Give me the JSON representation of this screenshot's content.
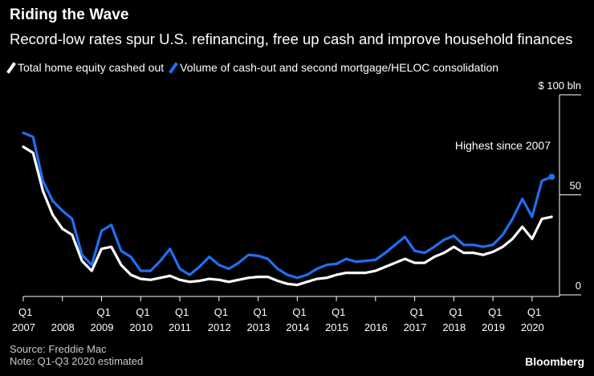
{
  "header": {
    "title": "Riding the Wave",
    "subtitle": "Record-low rates spur U.S. refinancing, free up cash and improve household finances"
  },
  "legend": [
    {
      "label": "Total home equity cashed out",
      "color": "#ffffff"
    },
    {
      "label": "Volume of cash-out and second mortgage/HELOC consolidation",
      "color": "#1f6ff2"
    }
  ],
  "footer": {
    "source": "Source: Freddie Mac",
    "note": "Note: Q1-Q3 2020 estimated",
    "brand": "Bloomberg"
  },
  "chart_data": {
    "type": "line",
    "title": "Riding the Wave",
    "ylabel": "$ bln",
    "ylim": [
      0,
      100
    ],
    "y_ticks": [
      {
        "value": 100,
        "label": "$ 100 bln"
      },
      {
        "value": 50,
        "label": "50"
      },
      {
        "value": 0,
        "label": "0"
      }
    ],
    "x_ticks": [
      {
        "quarter_index": 0,
        "q": "Q1",
        "year": "2007"
      },
      {
        "quarter_index": 4,
        "q": "",
        "year": "2008"
      },
      {
        "quarter_index": 8,
        "q": "Q1",
        "year": "2009"
      },
      {
        "quarter_index": 12,
        "q": "Q1",
        "year": "2010"
      },
      {
        "quarter_index": 16,
        "q": "Q1",
        "year": "2011"
      },
      {
        "quarter_index": 20,
        "q": "Q1",
        "year": "2012"
      },
      {
        "quarter_index": 24,
        "q": "Q1",
        "year": "2013"
      },
      {
        "quarter_index": 28,
        "q": "Q1",
        "year": "2014"
      },
      {
        "quarter_index": 32,
        "q": "Q1",
        "year": "2015"
      },
      {
        "quarter_index": 36,
        "q": "",
        "year": "2016"
      },
      {
        "quarter_index": 40,
        "q": "Q1",
        "year": "2017"
      },
      {
        "quarter_index": 44,
        "q": "Q1",
        "year": "2018"
      },
      {
        "quarter_index": 48,
        "q": "Q1",
        "year": "2019"
      },
      {
        "quarter_index": 52,
        "q": "Q1",
        "year": "2020"
      }
    ],
    "x_range": [
      0,
      54.8
    ],
    "annotation": {
      "text": "Highest since 2007",
      "series_index": 1,
      "point_index": 54
    },
    "series": [
      {
        "name": "Total home equity cashed out",
        "color": "#ffffff",
        "values": [
          74,
          71,
          52,
          40,
          33,
          30,
          17,
          12,
          23,
          24,
          15,
          10,
          8,
          7.5,
          8.5,
          9.5,
          7.5,
          6.5,
          7,
          8,
          7.5,
          6.5,
          7.5,
          8.5,
          9,
          9,
          7,
          5.5,
          5,
          6.5,
          8,
          8.5,
          10,
          11,
          11,
          11,
          12,
          14,
          16,
          18,
          16,
          16,
          19,
          21,
          24,
          21,
          21,
          20,
          21.5,
          24,
          28,
          34,
          28,
          38,
          39
        ]
      },
      {
        "name": "Volume of cash-out and second mortgage/HELOC consolidation",
        "color": "#1f6ff2",
        "values": [
          81,
          79,
          57,
          47,
          42,
          38,
          20,
          15,
          32,
          35,
          22,
          19,
          12,
          12,
          17,
          23,
          13,
          10,
          14,
          19,
          15,
          13,
          16,
          20,
          19.5,
          18,
          13,
          10,
          8.5,
          10,
          13,
          15,
          15.5,
          18,
          16.5,
          17,
          17.5,
          21,
          25,
          29,
          22,
          21,
          24,
          27.5,
          29.5,
          25,
          25,
          24,
          25,
          30,
          38,
          48,
          39,
          57,
          59
        ]
      }
    ]
  }
}
